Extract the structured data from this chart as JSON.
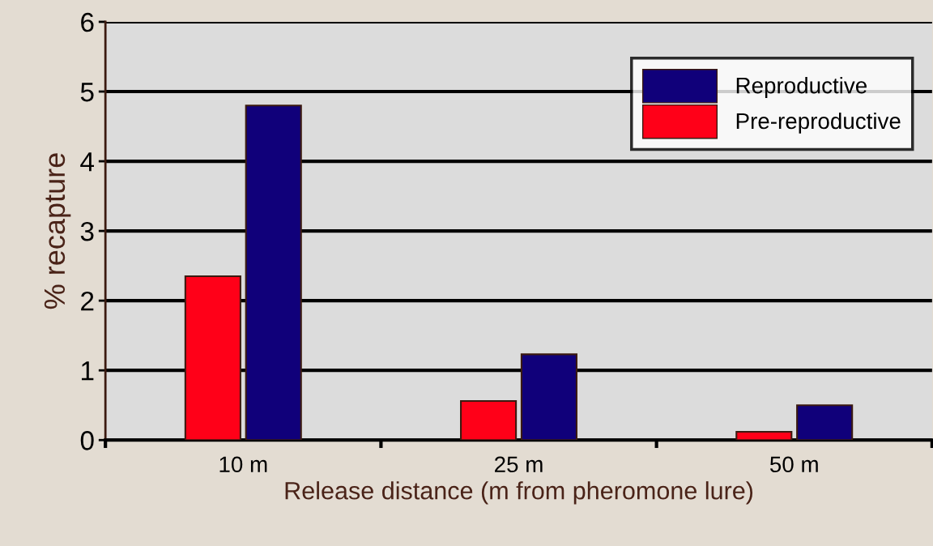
{
  "chart_data": {
    "type": "bar",
    "xlabel": "Release distance (m from pheromone lure)",
    "ylabel": "% recapture",
    "categories": [
      "10 m",
      "25 m",
      "50 m"
    ],
    "series": [
      {
        "name": "Reproductive",
        "color": "#10007a",
        "values": [
          4.8,
          1.23,
          0.5
        ]
      },
      {
        "name": "Pre-reproductive",
        "color": "#ff0018",
        "values": [
          2.35,
          0.56,
          0.12
        ]
      }
    ],
    "ylim": [
      0,
      6
    ],
    "yticks": [
      0,
      1,
      2,
      3,
      4,
      5,
      6
    ],
    "grid": "y",
    "legend": "top right"
  }
}
